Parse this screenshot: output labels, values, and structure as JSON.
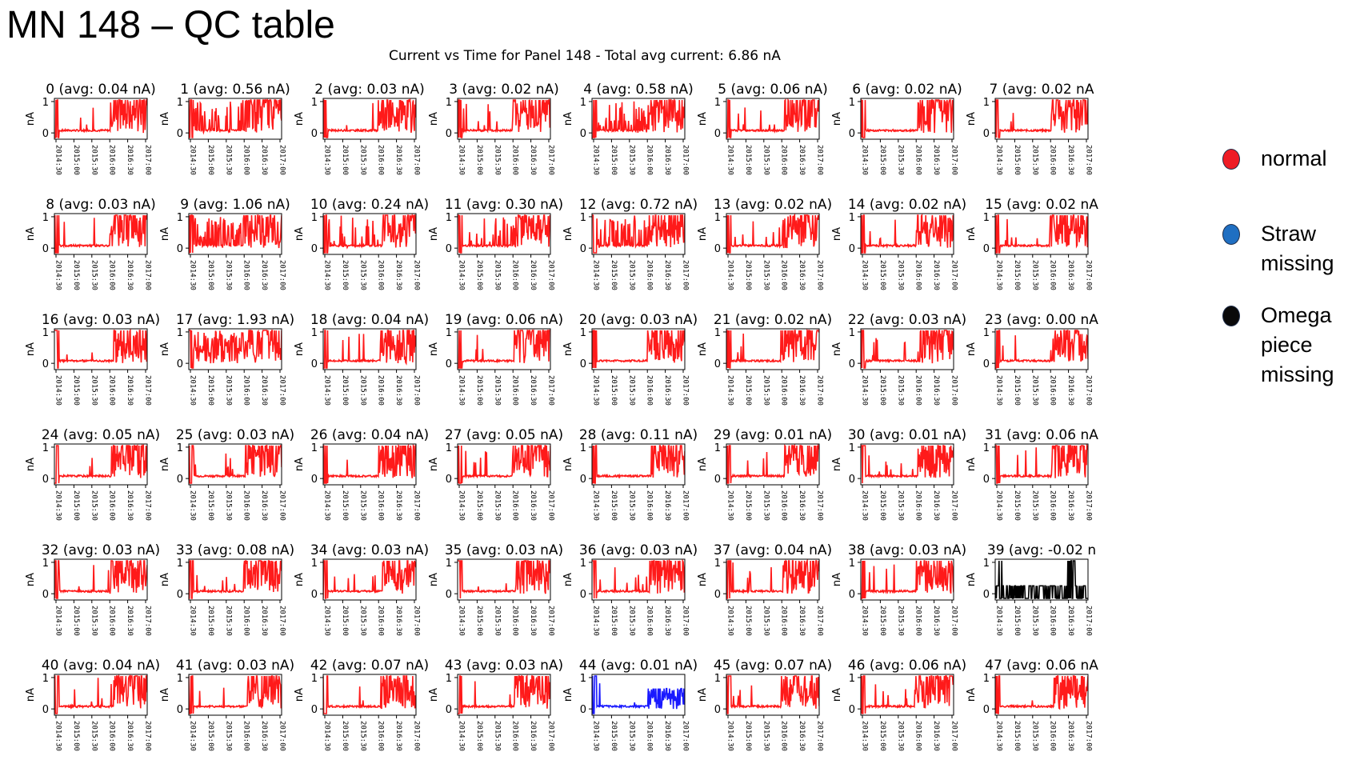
{
  "slide": {
    "title": "MN 148 – QC table"
  },
  "figure": {
    "title": "Current vs Time for Panel 148 - Total avg current: 6.86 nA"
  },
  "colors": {
    "normal": "#ff1a1a",
    "straw_missing": "#1a1aff",
    "omega_missing": "#000000"
  },
  "legend": [
    {
      "key": "normal",
      "label": "normal",
      "color": "#ee1c25"
    },
    {
      "key": "straw_missing",
      "label": "Straw missing",
      "color": "#1f6fc2"
    },
    {
      "key": "omega_missing",
      "label": "Omega piece missing",
      "color": "#0a0a0a"
    }
  ],
  "chart_data": {
    "type": "line",
    "layout_desc": "grid of 48 small-multiple line plots, 6 rows x 8 columns",
    "ylabel": "nA",
    "y_ticks": [
      "0",
      "1"
    ],
    "ylim": [
      -0.2,
      1.1
    ],
    "x_ticks": [
      "2014:30",
      "2015:00",
      "2015:30",
      "2016:00",
      "2016:30",
      "2017:00"
    ],
    "panels": [
      {
        "title": "0 (avg: 0.04 nA)",
        "status": "normal"
      },
      {
        "title": "1 (avg: 0.56 nA)",
        "status": "normal"
      },
      {
        "title": "2 (avg: 0.03 nA)",
        "status": "normal"
      },
      {
        "title": "3 (avg: 0.02 nA)",
        "status": "normal"
      },
      {
        "title": "4 (avg: 0.58 nA)",
        "status": "normal"
      },
      {
        "title": "5 (avg: 0.06 nA)",
        "status": "normal"
      },
      {
        "title": "6 (avg: 0.02 nA)",
        "status": "normal"
      },
      {
        "title": "7 (avg: 0.02 nA",
        "status": "normal"
      },
      {
        "title": "8 (avg: 0.03 nA)",
        "status": "normal"
      },
      {
        "title": "9 (avg: 1.06 nA)",
        "status": "normal"
      },
      {
        "title": "10 (avg: 0.24 nA)",
        "status": "normal"
      },
      {
        "title": "11 (avg: 0.30 nA)",
        "status": "normal"
      },
      {
        "title": "12 (avg: 0.72 nA)",
        "status": "normal"
      },
      {
        "title": "13 (avg: 0.02 nA)",
        "status": "normal"
      },
      {
        "title": "14 (avg: 0.02 nA)",
        "status": "normal"
      },
      {
        "title": "15 (avg: 0.02 nA",
        "status": "normal"
      },
      {
        "title": "16 (avg: 0.03 nA)",
        "status": "normal"
      },
      {
        "title": "17 (avg: 1.93 nA)",
        "status": "normal"
      },
      {
        "title": "18 (avg: 0.04 nA)",
        "status": "normal"
      },
      {
        "title": "19 (avg: 0.06 nA)",
        "status": "normal"
      },
      {
        "title": "20 (avg: 0.03 nA)",
        "status": "normal"
      },
      {
        "title": "21 (avg: 0.02 nA)",
        "status": "normal"
      },
      {
        "title": "22 (avg: 0.03 nA)",
        "status": "normal"
      },
      {
        "title": "23 (avg: 0.00 nA",
        "status": "normal"
      },
      {
        "title": "24 (avg: 0.05 nA)",
        "status": "normal"
      },
      {
        "title": "25 (avg: 0.03 nA)",
        "status": "normal"
      },
      {
        "title": "26 (avg: 0.04 nA)",
        "status": "normal"
      },
      {
        "title": "27 (avg: 0.05 nA)",
        "status": "normal"
      },
      {
        "title": "28 (avg: 0.11 nA)",
        "status": "normal"
      },
      {
        "title": "29 (avg: 0.01 nA)",
        "status": "normal"
      },
      {
        "title": "30 (avg: 0.01 nA)",
        "status": "normal"
      },
      {
        "title": "31 (avg: 0.06 nA",
        "status": "normal"
      },
      {
        "title": "32 (avg: 0.03 nA)",
        "status": "normal"
      },
      {
        "title": "33 (avg: 0.08 nA)",
        "status": "normal"
      },
      {
        "title": "34 (avg: 0.03 nA)",
        "status": "normal"
      },
      {
        "title": "35 (avg: 0.03 nA)",
        "status": "normal"
      },
      {
        "title": "36 (avg: 0.03 nA)",
        "status": "normal"
      },
      {
        "title": "37 (avg: 0.04 nA)",
        "status": "normal"
      },
      {
        "title": "38 (avg: 0.03 nA)",
        "status": "normal"
      },
      {
        "title": "39 (avg: -0.02 n",
        "status": "omega_missing"
      },
      {
        "title": "40 (avg: 0.04 nA)",
        "status": "normal"
      },
      {
        "title": "41 (avg: 0.03 nA)",
        "status": "normal"
      },
      {
        "title": "42 (avg: 0.07 nA)",
        "status": "normal"
      },
      {
        "title": "43 (avg: 0.03 nA)",
        "status": "normal"
      },
      {
        "title": "44 (avg: 0.01 nA)",
        "status": "straw_missing"
      },
      {
        "title": "45 (avg: 0.07 nA)",
        "status": "normal"
      },
      {
        "title": "46 (avg: 0.06 nA)",
        "status": "normal"
      },
      {
        "title": "47 (avg: 0.06 nA",
        "status": "normal"
      }
    ]
  }
}
